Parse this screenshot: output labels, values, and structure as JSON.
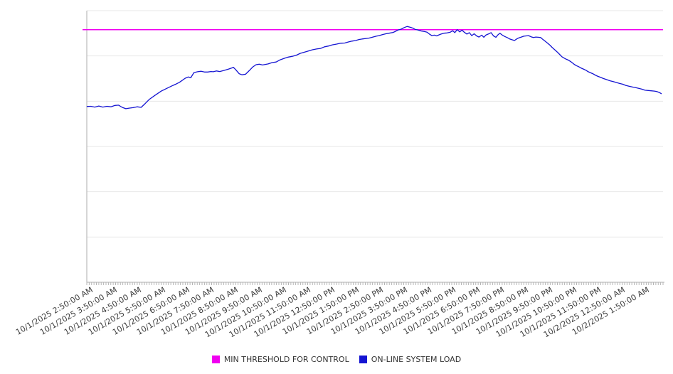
{
  "chart_data": {
    "type": "line",
    "title": "",
    "x_axis": {
      "tick_labels": [
        "10/1/2025 2:50:00 AM",
        "10/1/2025 3:50:00 AM",
        "10/1/2025 4:50:00 AM",
        "10/1/2025 5:50:00 AM",
        "10/1/2025 6:50:00 AM",
        "10/1/2025 7:50:00 AM",
        "10/1/2025 8:50:00 AM",
        "10/1/2025 9:50:00 AM",
        "10/1/2025 10:50:00 AM",
        "10/1/2025 11:50:00 AM",
        "10/1/2025 12:50:00 PM",
        "10/1/2025 1:50:00 PM",
        "10/1/2025 2:50:00 PM",
        "10/1/2025 3:50:00 PM",
        "10/1/2025 4:50:00 PM",
        "10/1/2025 5:50:00 PM",
        "10/1/2025 6:50:00 PM",
        "10/1/2025 7:50:00 PM",
        "10/1/2025 8:50:00 PM",
        "10/1/2025 9:50:00 PM",
        "10/1/2025 10:50:00 PM",
        "10/1/2025 11:50:00 PM",
        "10/2/2025 12:50:00 AM",
        "10/2/2025 1:50:00 AM"
      ],
      "tick_interval": "1 hour",
      "x_unit": "minutes relative to first tick (10/1/2025 2:50:00 AM)"
    },
    "y_axis": {
      "min": 0,
      "max": 100,
      "labels_visible": false,
      "gridline_count": 6
    },
    "legend_position": "bottom",
    "grid": "horizontal",
    "series": [
      {
        "name": "MIN THRESHOLD FOR CONTROL",
        "type": "threshold-line",
        "color": "#F000F0",
        "value": 93
      },
      {
        "name": "ON-LINE SYSTEM LOAD",
        "type": "line",
        "color": "#1414D2",
        "points": [
          [
            -9,
            64.7
          ],
          [
            1,
            64.8
          ],
          [
            11,
            64.5
          ],
          [
            21,
            64.9
          ],
          [
            31,
            64.5
          ],
          [
            41,
            64.8
          ],
          [
            51,
            64.6
          ],
          [
            61,
            65.1
          ],
          [
            70,
            65.2
          ],
          [
            79,
            64.4
          ],
          [
            88,
            63.9
          ],
          [
            96,
            64.1
          ],
          [
            106,
            64.3
          ],
          [
            116,
            64.6
          ],
          [
            126,
            64.4
          ],
          [
            136,
            65.8
          ],
          [
            146,
            67.3
          ],
          [
            161,
            68.9
          ],
          [
            176,
            70.4
          ],
          [
            191,
            71.5
          ],
          [
            205,
            72.5
          ],
          [
            213,
            73.0
          ],
          [
            221,
            73.6
          ],
          [
            235,
            75.1
          ],
          [
            243,
            75.6
          ],
          [
            249,
            75.3
          ],
          [
            257,
            77.2
          ],
          [
            266,
            77.5
          ],
          [
            275,
            77.7
          ],
          [
            283,
            77.4
          ],
          [
            291,
            77.4
          ],
          [
            299,
            77.6
          ],
          [
            305,
            77.5
          ],
          [
            313,
            77.8
          ],
          [
            321,
            77.6
          ],
          [
            332,
            78.0
          ],
          [
            343,
            78.5
          ],
          [
            355,
            79.1
          ],
          [
            361,
            78.2
          ],
          [
            369,
            76.8
          ],
          [
            376,
            76.4
          ],
          [
            385,
            76.6
          ],
          [
            394,
            77.9
          ],
          [
            403,
            79.3
          ],
          [
            411,
            80.1
          ],
          [
            419,
            80.3
          ],
          [
            427,
            80.0
          ],
          [
            441,
            80.4
          ],
          [
            451,
            80.9
          ],
          [
            461,
            81.1
          ],
          [
            471,
            81.9
          ],
          [
            482,
            82.5
          ],
          [
            491,
            82.9
          ],
          [
            501,
            83.2
          ],
          [
            511,
            83.6
          ],
          [
            521,
            84.3
          ],
          [
            531,
            84.7
          ],
          [
            540,
            85.1
          ],
          [
            551,
            85.6
          ],
          [
            561,
            85.9
          ],
          [
            571,
            86.1
          ],
          [
            581,
            86.7
          ],
          [
            591,
            87.0
          ],
          [
            600,
            87.4
          ],
          [
            611,
            87.7
          ],
          [
            621,
            88.0
          ],
          [
            631,
            88.1
          ],
          [
            641,
            88.5
          ],
          [
            649,
            88.8
          ],
          [
            658,
            89.0
          ],
          [
            667,
            89.4
          ],
          [
            676,
            89.6
          ],
          [
            686,
            89.8
          ],
          [
            691,
            89.9
          ],
          [
            701,
            90.3
          ],
          [
            709,
            90.6
          ],
          [
            716,
            90.8
          ],
          [
            725,
            91.2
          ],
          [
            733,
            91.5
          ],
          [
            741,
            91.7
          ],
          [
            751,
            92.0
          ],
          [
            757,
            92.4
          ],
          [
            764,
            92.9
          ],
          [
            771,
            93.2
          ],
          [
            779,
            93.8
          ],
          [
            786,
            94.2
          ],
          [
            793,
            93.9
          ],
          [
            801,
            93.5
          ],
          [
            806,
            93.1
          ],
          [
            812,
            92.9
          ],
          [
            821,
            92.5
          ],
          [
            829,
            92.3
          ],
          [
            835,
            92.1
          ],
          [
            841,
            91.4
          ],
          [
            847,
            90.8
          ],
          [
            853,
            91.0
          ],
          [
            859,
            90.7
          ],
          [
            865,
            91.1
          ],
          [
            870,
            91.4
          ],
          [
            877,
            91.7
          ],
          [
            885,
            91.8
          ],
          [
            893,
            92.1
          ],
          [
            899,
            92.6
          ],
          [
            904,
            91.9
          ],
          [
            910,
            93.0
          ],
          [
            916,
            92.2
          ],
          [
            922,
            92.8
          ],
          [
            928,
            92.0
          ],
          [
            934,
            91.4
          ],
          [
            940,
            91.9
          ],
          [
            946,
            90.8
          ],
          [
            952,
            91.5
          ],
          [
            958,
            90.7
          ],
          [
            964,
            90.3
          ],
          [
            971,
            91.0
          ],
          [
            976,
            90.2
          ],
          [
            981,
            91.0
          ],
          [
            987,
            91.4
          ],
          [
            994,
            91.9
          ],
          [
            1000,
            90.7
          ],
          [
            1006,
            90.2
          ],
          [
            1011,
            91.1
          ],
          [
            1016,
            91.7
          ],
          [
            1022,
            91.0
          ],
          [
            1028,
            90.5
          ],
          [
            1034,
            90.1
          ],
          [
            1040,
            89.6
          ],
          [
            1046,
            89.3
          ],
          [
            1052,
            89.0
          ],
          [
            1058,
            89.6
          ],
          [
            1063,
            90.0
          ],
          [
            1069,
            90.3
          ],
          [
            1075,
            90.6
          ],
          [
            1081,
            90.7
          ],
          [
            1087,
            90.8
          ],
          [
            1093,
            90.4
          ],
          [
            1099,
            90.1
          ],
          [
            1105,
            90.3
          ],
          [
            1111,
            90.2
          ],
          [
            1117,
            90.1
          ],
          [
            1121,
            89.6
          ],
          [
            1126,
            89.0
          ],
          [
            1133,
            88.2
          ],
          [
            1140,
            87.3
          ],
          [
            1146,
            86.4
          ],
          [
            1152,
            85.6
          ],
          [
            1158,
            84.8
          ],
          [
            1164,
            83.9
          ],
          [
            1170,
            83.0
          ],
          [
            1176,
            82.5
          ],
          [
            1181,
            82.1
          ],
          [
            1187,
            81.7
          ],
          [
            1193,
            81.1
          ],
          [
            1199,
            80.4
          ],
          [
            1205,
            79.8
          ],
          [
            1211,
            79.4
          ],
          [
            1217,
            78.9
          ],
          [
            1223,
            78.5
          ],
          [
            1229,
            78.1
          ],
          [
            1234,
            77.6
          ],
          [
            1240,
            77.2
          ],
          [
            1246,
            76.8
          ],
          [
            1252,
            76.3
          ],
          [
            1258,
            75.9
          ],
          [
            1265,
            75.5
          ],
          [
            1273,
            75.0
          ],
          [
            1281,
            74.6
          ],
          [
            1289,
            74.2
          ],
          [
            1297,
            73.9
          ],
          [
            1306,
            73.5
          ],
          [
            1313,
            73.2
          ],
          [
            1321,
            72.9
          ],
          [
            1328,
            72.5
          ],
          [
            1336,
            72.2
          ],
          [
            1344,
            71.9
          ],
          [
            1352,
            71.7
          ],
          [
            1360,
            71.4
          ],
          [
            1368,
            71.1
          ],
          [
            1376,
            70.7
          ],
          [
            1384,
            70.6
          ],
          [
            1391,
            70.5
          ],
          [
            1399,
            70.4
          ],
          [
            1405,
            70.2
          ],
          [
            1411,
            69.9
          ],
          [
            1417,
            69.4
          ]
        ]
      }
    ]
  },
  "legend": {
    "items": [
      {
        "label": "MIN THRESHOLD FOR CONTROL",
        "color": "#F000F0"
      },
      {
        "label": "ON-LINE SYSTEM LOAD",
        "color": "#1414D2"
      }
    ]
  },
  "colors": {
    "background": "#FFFFFF",
    "grid": "#E7E7E7",
    "axis": "#ADADAD",
    "minor_tick": "#B5B5B5",
    "label_text": "#3C3C3C"
  }
}
